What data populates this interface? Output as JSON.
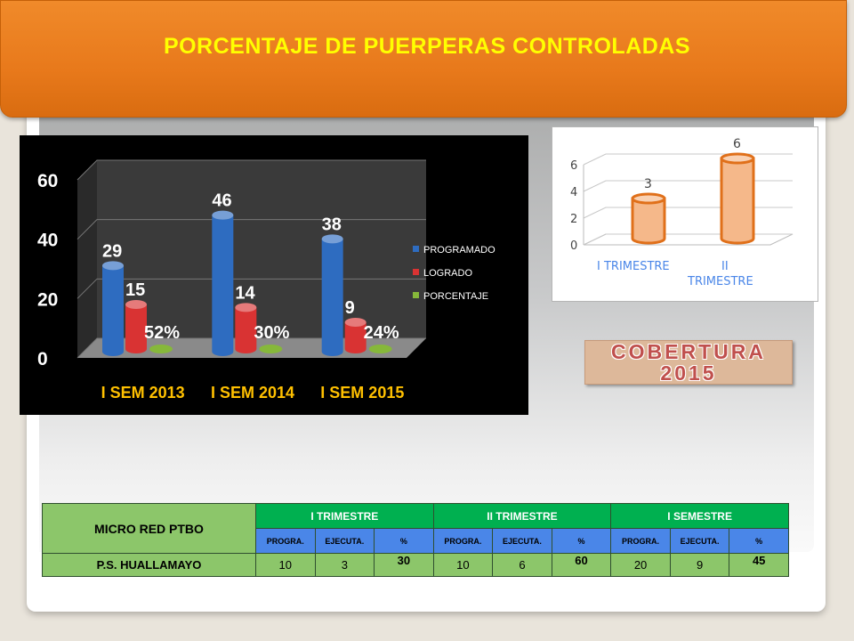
{
  "title": "PORCENTAJE DE PUERPERAS CONTROLADAS",
  "badge": "COBERTURA 2015",
  "colors": {
    "programado": "#2e6cc0",
    "logrado": "#d93333",
    "porcentaje": "#86b83a",
    "bar_small": "#f5b88a"
  },
  "chart_data": [
    {
      "type": "bar",
      "categories": [
        "I SEM 2013",
        "I SEM 2014",
        "I SEM 2015"
      ],
      "series": [
        {
          "name": "PROGRAMADO",
          "values": [
            29,
            46,
            38
          ]
        },
        {
          "name": "LOGRADO",
          "values": [
            15,
            14,
            9
          ]
        },
        {
          "name": "PORCENTAJE",
          "values": [
            0.52,
            0.3,
            0.24
          ],
          "labels": [
            "52%",
            "30%",
            "24%"
          ]
        }
      ],
      "ylim": [
        0,
        60
      ],
      "yticks": [
        "0",
        "20",
        "40",
        "60"
      ],
      "legend": "right"
    },
    {
      "type": "bar",
      "categories": [
        "I TRIMESTRE",
        "II TRIMESTRE"
      ],
      "values": [
        3,
        6
      ],
      "ylim": [
        0,
        6
      ],
      "yticks": [
        "0",
        "2",
        "4",
        "6"
      ]
    }
  ],
  "table": {
    "corner": "MICRO RED  PTBO",
    "groups": [
      "I TRIMESTRE",
      "II TRIMESTRE",
      "I SEMESTRE"
    ],
    "subheaders": [
      "PROGRA.",
      "EJECUTA.",
      "%"
    ],
    "rows": [
      {
        "name": "P.S. HUALLAMAYO",
        "cells": [
          "10",
          "3",
          "30",
          "10",
          "6",
          "60",
          "20",
          "9",
          "45"
        ]
      }
    ]
  }
}
